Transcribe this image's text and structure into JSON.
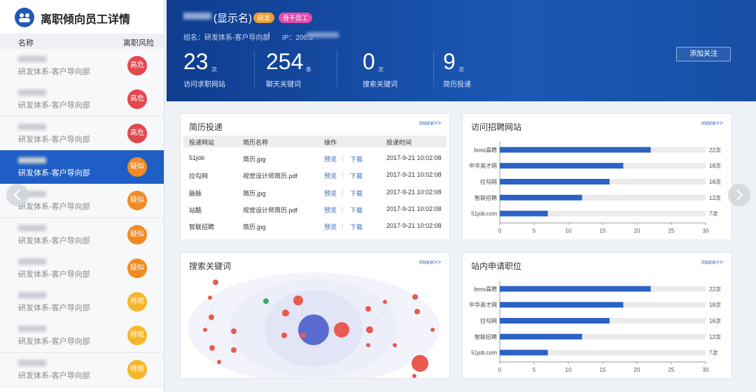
{
  "sidebar": {
    "title": "离职倾向员工详情",
    "columns": [
      "名称",
      "离职风险"
    ],
    "rows": [
      {
        "department": "研发体系-客户导向部",
        "risk": "高危",
        "color": "#e2484d"
      },
      {
        "department": "研发体系-客户导向部",
        "risk": "高危",
        "color": "#e2484d"
      },
      {
        "department": "研发体系-客户导向部",
        "risk": "高危",
        "color": "#e2484d"
      },
      {
        "department": "研发体系-客户导向部",
        "risk": "疑似",
        "color": "#f28a24"
      },
      {
        "department": "研发体系-客户导向部",
        "risk": "疑似",
        "color": "#f28a24"
      },
      {
        "department": "研发体系-客户导向部",
        "risk": "疑似",
        "color": "#f28a24"
      },
      {
        "department": "研发体系-客户导向部",
        "risk": "疑似",
        "color": "#f28a24"
      },
      {
        "department": "研发体系-客户导向部",
        "risk": "待观",
        "color": "#f6b62c"
      },
      {
        "department": "研发体系-客户导向部",
        "risk": "待观",
        "color": "#f6b62c"
      },
      {
        "department": "研发体系-客户导向部",
        "risk": "待观",
        "color": "#f6b62c"
      }
    ]
  },
  "profile": {
    "name": "(显示名)",
    "tags": [
      {
        "text": "研发",
        "color": "#f39c2c"
      },
      {
        "text": "骨干员工",
        "color": "#e44bb0"
      }
    ],
    "group": "组名：研发体系-客户导向部",
    "separator": "|",
    "ip": "IP：200.2",
    "stats": [
      {
        "value": 23,
        "unit": "次",
        "label": "访问求职网站"
      },
      {
        "value": 254,
        "unit": "条",
        "label": "聊天关键词"
      },
      {
        "value": 0,
        "unit": "次",
        "label": "搜索关键词"
      },
      {
        "value": 9,
        "unit": "次",
        "label": "简历投递"
      }
    ],
    "button": "添加关注"
  },
  "resume": {
    "title": "简历投递",
    "more": "more>>",
    "columns": [
      "投递网站",
      "简历名称",
      "操作",
      "投递时间"
    ],
    "rows": [
      [
        "51job",
        "简历.jpg",
        "预览",
        "|",
        "下载",
        "2017-9-21 10:02:08"
      ],
      [
        "拉勾网",
        "视觉设计师简历.pdf",
        "预览",
        "|",
        "下载",
        "2017-9-21 10:02:08"
      ],
      [
        "脉脉",
        "简历.jpg",
        "预览",
        "|",
        "下载",
        "2017-9-21 10:02:08"
      ],
      [
        "站酷",
        "视觉设计师简历.pdf",
        "预览",
        "|",
        "下载",
        "2017-9-21 10:02:08"
      ],
      [
        "智联招聘",
        "简历.jpg",
        "预览",
        "|",
        "下载",
        "2017-9-21 10:02:08"
      ]
    ]
  },
  "keywords": {
    "title": "搜索关键词",
    "more": "more>>"
  },
  "chart_data": [
    {
      "type": "bar",
      "title": "访问招聘网站",
      "more": "more>>",
      "categories": [
        "boss直聘",
        "中华英才网",
        "拉勾网",
        "智联招聘",
        "51job.com"
      ],
      "values": [
        22,
        18,
        16,
        12,
        7
      ],
      "value_labels": [
        "22次",
        "18次",
        "16次",
        "12次",
        "7次"
      ],
      "color": "#2b62c4",
      "track_color": "#ebebeb",
      "xlim": [
        0,
        30
      ],
      "xticks": [
        0,
        5,
        10,
        15,
        20,
        25,
        30
      ]
    },
    {
      "type": "bar",
      "title": "站内申请职位",
      "more": "more>>",
      "categories": [
        "boss直聘",
        "中华英才网",
        "拉勾网",
        "智联招聘",
        "51job.com"
      ],
      "values": [
        22,
        18,
        16,
        12,
        7
      ],
      "value_labels": [
        "22次",
        "18次",
        "16次",
        "12次",
        "7次"
      ],
      "color": "#2b62c4",
      "track_color": "#ebebeb",
      "xlim": [
        0,
        30
      ],
      "xticks": [
        0,
        5,
        10,
        15,
        20,
        25,
        30
      ]
    }
  ]
}
